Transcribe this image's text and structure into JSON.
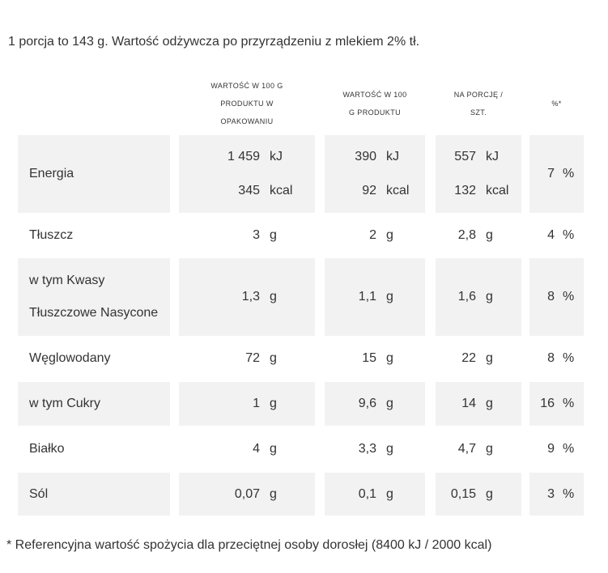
{
  "intro": "1 porcja to 143 g. Wartość odżywcza po przyrządzeniu z mlekiem 2% tł.",
  "footnote": "* Referencyjna wartość spożycia dla przeciętnej osoby dorosłej (8400 kJ / 2000 kcal)",
  "headers": {
    "col1": "WARTOŚĆ W 100 G\nPRODUKTU W\nOPAKOWANIU",
    "col2": "WARTOŚĆ W 100\nG PRODUKTU",
    "col3": "NA PORCJĘ /\nSZT.",
    "col4": "%*"
  },
  "shade_color": "#f2f2f2",
  "rows": [
    {
      "label": "Energia",
      "shaded": true,
      "col1": [
        {
          "num": "1 459",
          "unit": "kJ"
        },
        {
          "num": "345",
          "unit": "kcal"
        }
      ],
      "col2": [
        {
          "num": "390",
          "unit": "kJ"
        },
        {
          "num": "92",
          "unit": "kcal"
        }
      ],
      "col3": [
        {
          "num": "557",
          "unit": "kJ"
        },
        {
          "num": "132",
          "unit": "kcal"
        }
      ],
      "col4": {
        "num": "7",
        "unit": "%"
      }
    },
    {
      "label": "Tłuszcz",
      "shaded": false,
      "col1": [
        {
          "num": "3",
          "unit": "g"
        }
      ],
      "col2": [
        {
          "num": "2",
          "unit": "g"
        }
      ],
      "col3": [
        {
          "num": "2,8",
          "unit": "g"
        }
      ],
      "col4": {
        "num": "4",
        "unit": "%"
      }
    },
    {
      "label": "w tym Kwasy\nTłuszczowe Nasycone",
      "shaded": true,
      "col1": [
        {
          "num": "1,3",
          "unit": "g"
        }
      ],
      "col2": [
        {
          "num": "1,1",
          "unit": "g"
        }
      ],
      "col3": [
        {
          "num": "1,6",
          "unit": "g"
        }
      ],
      "col4": {
        "num": "8",
        "unit": "%"
      }
    },
    {
      "label": "Węglowodany",
      "shaded": false,
      "col1": [
        {
          "num": "72",
          "unit": "g"
        }
      ],
      "col2": [
        {
          "num": "15",
          "unit": "g"
        }
      ],
      "col3": [
        {
          "num": "22",
          "unit": "g"
        }
      ],
      "col4": {
        "num": "8",
        "unit": "%"
      }
    },
    {
      "label": "w tym Cukry",
      "shaded": true,
      "col1": [
        {
          "num": "1",
          "unit": "g"
        }
      ],
      "col2": [
        {
          "num": "9,6",
          "unit": "g"
        }
      ],
      "col3": [
        {
          "num": "14",
          "unit": "g"
        }
      ],
      "col4": {
        "num": "16",
        "unit": "%"
      }
    },
    {
      "label": "Białko",
      "shaded": false,
      "col1": [
        {
          "num": "4",
          "unit": "g"
        }
      ],
      "col2": [
        {
          "num": "3,3",
          "unit": "g"
        }
      ],
      "col3": [
        {
          "num": "4,7",
          "unit": "g"
        }
      ],
      "col4": {
        "num": "9",
        "unit": "%"
      }
    },
    {
      "label": "Sól",
      "shaded": true,
      "col1": [
        {
          "num": "0,07",
          "unit": "g"
        }
      ],
      "col2": [
        {
          "num": "0,1",
          "unit": "g"
        }
      ],
      "col3": [
        {
          "num": "0,15",
          "unit": "g"
        }
      ],
      "col4": {
        "num": "3",
        "unit": "%"
      }
    }
  ]
}
